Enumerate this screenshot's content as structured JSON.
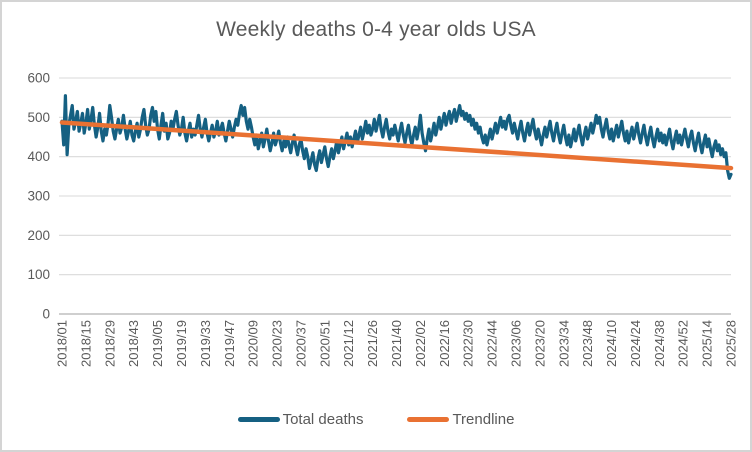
{
  "chart_data": {
    "type": "line",
    "title": "Weekly deaths 0-4 year olds USA",
    "xlabel": "",
    "ylabel": "",
    "ylim": [
      0,
      600
    ],
    "y_ticks": [
      0,
      100,
      200,
      300,
      400,
      500,
      600
    ],
    "grid": "horizontal",
    "legend_position": "bottom",
    "x_tick_interval_weeks": 14,
    "x_tick_labels": [
      "2018/01",
      "2018/15",
      "2018/29",
      "2018/43",
      "2019/05",
      "2019/19",
      "2019/33",
      "2019/47",
      "2020/09",
      "2020/23",
      "2020/37",
      "2020/51",
      "2021/12",
      "2021/26",
      "2021/40",
      "2022/02",
      "2022/16",
      "2022/30",
      "2022/44",
      "2023/06",
      "2023/20",
      "2023/34",
      "2023/48",
      "2024/10",
      "2024/24",
      "2024/38",
      "2024/52",
      "2025/14",
      "2025/28"
    ],
    "series": [
      {
        "name": "Total deaths",
        "color": "#156082",
        "values": [
          490,
          430,
          555,
          405,
          480,
          505,
          530,
          470,
          490,
          515,
          465,
          485,
          510,
          460,
          485,
          520,
          470,
          495,
          525,
          480,
          450,
          475,
          510,
          465,
          440,
          470,
          455,
          485,
          530,
          500,
          465,
          445,
          470,
          495,
          460,
          475,
          505,
          470,
          445,
          465,
          490,
          455,
          440,
          465,
          485,
          450,
          470,
          500,
          520,
          480,
          455,
          470,
          505,
          525,
          490,
          515,
          470,
          445,
          480,
          510,
          465,
          485,
          445,
          460,
          490,
          470,
          495,
          515,
          480,
          455,
          470,
          500,
          460,
          440,
          465,
          485,
          450,
          470,
          455,
          480,
          505,
          470,
          450,
          475,
          495,
          460,
          440,
          460,
          480,
          450,
          465,
          490,
          455,
          470,
          485,
          460,
          440,
          465,
          490,
          470,
          450,
          475,
          495,
          480,
          510,
          530,
          505,
          525,
          490,
          470,
          495,
          475,
          450,
          430,
          455,
          420,
          440,
          460,
          425,
          445,
          470,
          440,
          415,
          435,
          460,
          430,
          445,
          465,
          435,
          415,
          440,
          425,
          450,
          430,
          410,
          435,
          455,
          425,
          405,
          430,
          445,
          415,
          395,
          420,
          400,
          370,
          390,
          410,
          380,
          365,
          395,
          415,
          385,
          405,
          425,
          395,
          375,
          400,
          420,
          395,
          415,
          440,
          410,
          430,
          450,
          420,
          440,
          460,
          430,
          450,
          425,
          445,
          465,
          435,
          455,
          475,
          445,
          465,
          490,
          460,
          480,
          455,
          470,
          495,
          465,
          485,
          505,
          470,
          450,
          475,
          495,
          465,
          445,
          470,
          455,
          480,
          460,
          440,
          465,
          485,
          455,
          435,
          460,
          480,
          450,
          430,
          455,
          475,
          445,
          470,
          505,
          460,
          435,
          415,
          445,
          470,
          440,
          460,
          485,
          455,
          475,
          500,
          470,
          490,
          510,
          480,
          500,
          515,
          485,
          505,
          520,
          490,
          510,
          530,
          505,
          515,
          495,
          510,
          490,
          505,
          480,
          495,
          470,
          485,
          460,
          475,
          450,
          435,
          455,
          430,
          450,
          470,
          445,
          465,
          485,
          460,
          480,
          500,
          475,
          490,
          470,
          495,
          505,
          480,
          460,
          485,
          465,
          445,
          470,
          490,
          460,
          440,
          465,
          485,
          455,
          475,
          495,
          465,
          445,
          470,
          450,
          430,
          455,
          475,
          450,
          470,
          490,
          460,
          440,
          465,
          485,
          455,
          435,
          460,
          480,
          450,
          430,
          455,
          425,
          445,
          470,
          440,
          460,
          480,
          450,
          430,
          455,
          475,
          445,
          465,
          485,
          460,
          480,
          505,
          485,
          500,
          470,
          450,
          475,
          495,
          465,
          445,
          470,
          440,
          460,
          480,
          450,
          470,
          490,
          460,
          440,
          465,
          435,
          455,
          475,
          445,
          465,
          485,
          455,
          435,
          460,
          480,
          450,
          430,
          455,
          475,
          445,
          425,
          450,
          470,
          440,
          460,
          435,
          455,
          430,
          450,
          470,
          440,
          420,
          445,
          465,
          435,
          455,
          430,
          450,
          470,
          445,
          425,
          450,
          465,
          435,
          415,
          440,
          460,
          430,
          410,
          435,
          455,
          425,
          445,
          420,
          400,
          425,
          440,
          415,
          430,
          405,
          420,
          400,
          410,
          365,
          345,
          355
        ]
      },
      {
        "name": "Trendline",
        "color": "#E97132",
        "trend_start": 487,
        "trend_end": 371
      }
    ]
  },
  "legend": {
    "total_deaths_label": "Total deaths",
    "trendline_label": "Trendline"
  },
  "style": {
    "gridline_color": "#d9d9d9",
    "axis_line_color": "#bfbfbf",
    "text_color": "#595959",
    "background": "#ffffff",
    "border_color": "#d4d4d4"
  }
}
